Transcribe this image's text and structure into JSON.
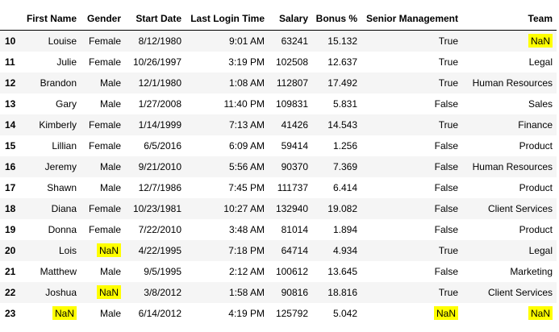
{
  "highlight_color": "#ffff00",
  "columns": [
    "",
    "First Name",
    "Gender",
    "Start Date",
    "Last Login Time",
    "Salary",
    "Bonus %",
    "Senior Management",
    "Team"
  ],
  "rows": [
    {
      "index": "10",
      "first_name": "Louise",
      "gender": "Female",
      "start_date": "8/12/1980",
      "last_login": "9:01 AM",
      "salary": "63241",
      "bonus": "15.132",
      "senior": "True",
      "team": "NaN",
      "highlight": [
        "team"
      ]
    },
    {
      "index": "11",
      "first_name": "Julie",
      "gender": "Female",
      "start_date": "10/26/1997",
      "last_login": "3:19 PM",
      "salary": "102508",
      "bonus": "12.637",
      "senior": "True",
      "team": "Legal",
      "highlight": []
    },
    {
      "index": "12",
      "first_name": "Brandon",
      "gender": "Male",
      "start_date": "12/1/1980",
      "last_login": "1:08 AM",
      "salary": "112807",
      "bonus": "17.492",
      "senior": "True",
      "team": "Human Resources",
      "highlight": []
    },
    {
      "index": "13",
      "first_name": "Gary",
      "gender": "Male",
      "start_date": "1/27/2008",
      "last_login": "11:40 PM",
      "salary": "109831",
      "bonus": "5.831",
      "senior": "False",
      "team": "Sales",
      "highlight": []
    },
    {
      "index": "14",
      "first_name": "Kimberly",
      "gender": "Female",
      "start_date": "1/14/1999",
      "last_login": "7:13 AM",
      "salary": "41426",
      "bonus": "14.543",
      "senior": "True",
      "team": "Finance",
      "highlight": []
    },
    {
      "index": "15",
      "first_name": "Lillian",
      "gender": "Female",
      "start_date": "6/5/2016",
      "last_login": "6:09 AM",
      "salary": "59414",
      "bonus": "1.256",
      "senior": "False",
      "team": "Product",
      "highlight": []
    },
    {
      "index": "16",
      "first_name": "Jeremy",
      "gender": "Male",
      "start_date": "9/21/2010",
      "last_login": "5:56 AM",
      "salary": "90370",
      "bonus": "7.369",
      "senior": "False",
      "team": "Human Resources",
      "highlight": []
    },
    {
      "index": "17",
      "first_name": "Shawn",
      "gender": "Male",
      "start_date": "12/7/1986",
      "last_login": "7:45 PM",
      "salary": "111737",
      "bonus": "6.414",
      "senior": "False",
      "team": "Product",
      "highlight": []
    },
    {
      "index": "18",
      "first_name": "Diana",
      "gender": "Female",
      "start_date": "10/23/1981",
      "last_login": "10:27 AM",
      "salary": "132940",
      "bonus": "19.082",
      "senior": "False",
      "team": "Client Services",
      "highlight": []
    },
    {
      "index": "19",
      "first_name": "Donna",
      "gender": "Female",
      "start_date": "7/22/2010",
      "last_login": "3:48 AM",
      "salary": "81014",
      "bonus": "1.894",
      "senior": "False",
      "team": "Product",
      "highlight": []
    },
    {
      "index": "20",
      "first_name": "Lois",
      "gender": "NaN",
      "start_date": "4/22/1995",
      "last_login": "7:18 PM",
      "salary": "64714",
      "bonus": "4.934",
      "senior": "True",
      "team": "Legal",
      "highlight": [
        "gender"
      ]
    },
    {
      "index": "21",
      "first_name": "Matthew",
      "gender": "Male",
      "start_date": "9/5/1995",
      "last_login": "2:12 AM",
      "salary": "100612",
      "bonus": "13.645",
      "senior": "False",
      "team": "Marketing",
      "highlight": []
    },
    {
      "index": "22",
      "first_name": "Joshua",
      "gender": "NaN",
      "start_date": "3/8/2012",
      "last_login": "1:58 AM",
      "salary": "90816",
      "bonus": "18.816",
      "senior": "True",
      "team": "Client Services",
      "highlight": [
        "gender"
      ]
    },
    {
      "index": "23",
      "first_name": "NaN",
      "gender": "Male",
      "start_date": "6/14/2012",
      "last_login": "4:19 PM",
      "salary": "125792",
      "bonus": "5.042",
      "senior": "NaN",
      "team": "NaN",
      "highlight": [
        "first_name",
        "senior",
        "team"
      ]
    }
  ]
}
